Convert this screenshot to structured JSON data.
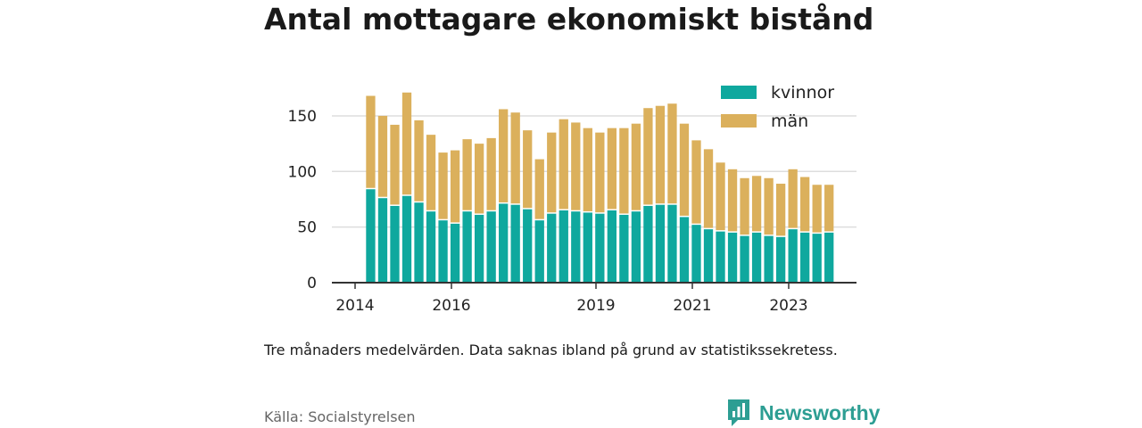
{
  "title": "Antal mottagare ekonomiskt bistånd",
  "note": "Tre månaders medelvärden. Data saknas ibland på grund av statistikssekretess.",
  "source": "Källa: Socialstyrelsen",
  "brand": {
    "name": "Newsworthy",
    "icon": "newsworthy-logo-icon"
  },
  "colors": {
    "kvinnor": "#0fa89e",
    "man": "#dbb05c",
    "grid": "#dddddd",
    "axis": "#333333"
  },
  "chart_data": {
    "type": "bar",
    "stacked": true,
    "title": "Antal mottagare ekonomiskt bistånd",
    "ylim": [
      0,
      175
    ],
    "yticks": [
      0,
      50,
      100,
      150
    ],
    "xticks": [
      "2014",
      "2016",
      "2019",
      "2021",
      "2023"
    ],
    "grid": true,
    "legend_position": "top-right",
    "x": [
      "2014-Q2",
      "2014-Q3",
      "2014-Q4",
      "2015-Q1",
      "2015-Q2",
      "2015-Q3",
      "2015-Q4",
      "2016-Q1",
      "2016-Q2",
      "2016-Q3",
      "2016-Q4",
      "2017-Q1",
      "2017-Q2",
      "2017-Q3",
      "2017-Q4",
      "2018-Q1",
      "2018-Q2",
      "2018-Q3",
      "2018-Q4",
      "2019-Q1",
      "2019-Q2",
      "2019-Q3",
      "2019-Q4",
      "2020-Q1",
      "2020-Q2",
      "2020-Q3",
      "2020-Q4",
      "2021-Q1",
      "2021-Q2",
      "2021-Q3",
      "2021-Q4",
      "2022-Q1",
      "2022-Q2",
      "2022-Q3",
      "2022-Q4",
      "2023-Q1",
      "2023-Q2",
      "2023-Q3",
      "2023-Q4"
    ],
    "series": [
      {
        "name": "kvinnor",
        "values": [
          84,
          76,
          69,
          78,
          72,
          64,
          56,
          53,
          64,
          61,
          64,
          71,
          70,
          66,
          56,
          62,
          65,
          64,
          63,
          62,
          65,
          61,
          64,
          69,
          70,
          70,
          59,
          52,
          48,
          46,
          45,
          42,
          45,
          42,
          41,
          48,
          45,
          44,
          45
        ]
      },
      {
        "name": "män",
        "values": [
          84,
          74,
          73,
          93,
          74,
          69,
          61,
          66,
          65,
          64,
          66,
          85,
          83,
          71,
          55,
          73,
          82,
          80,
          76,
          73,
          74,
          78,
          79,
          88,
          89,
          91,
          84,
          76,
          72,
          62,
          57,
          52,
          51,
          52,
          48,
          54,
          50,
          44,
          43
        ]
      }
    ]
  }
}
